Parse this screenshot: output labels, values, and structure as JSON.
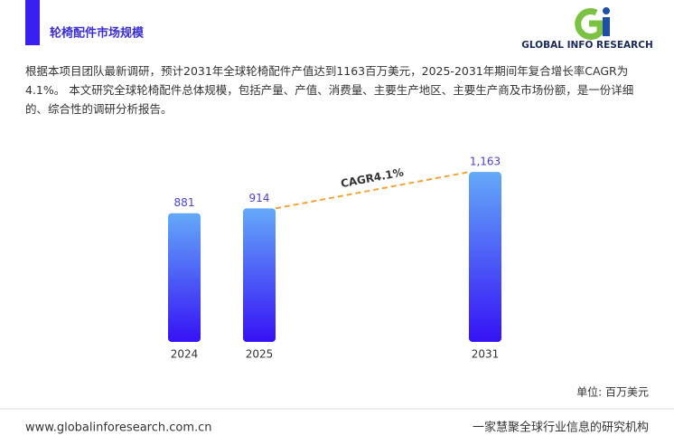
{
  "header": {
    "title": "轮椅配件市场规模",
    "logo_text": "GLOBAL INFO RESEARCH"
  },
  "description": "根据本项目团队最新调研，预计2031年全球轮椅配件产值达到1163百万美元，2025-2031年期间年复合增长率CAGR为4.1%。 本文研究全球轮椅配件总体规模，包括产量、产值、消费量、主要生产地区、主要生产商及市场份额，是一份详细的、综合性的调研分析报告。",
  "chart_data": {
    "type": "bar",
    "categories": [
      "2024",
      "2025",
      "2031"
    ],
    "values": [
      881,
      914,
      1163
    ],
    "value_labels": [
      "881",
      "914",
      "1,163"
    ],
    "color_top": "#64a9f8",
    "color_bottom": "#3612f5",
    "label_color": "#4a44c8",
    "annotation": "CAGR4.1%",
    "annotation_color": "#f2a33a",
    "unit": "单位: 百万美元"
  },
  "footer": {
    "url": "www.globalinforesearch.com.cn",
    "slogan": "一家慧聚全球行业信息的研究机构"
  }
}
